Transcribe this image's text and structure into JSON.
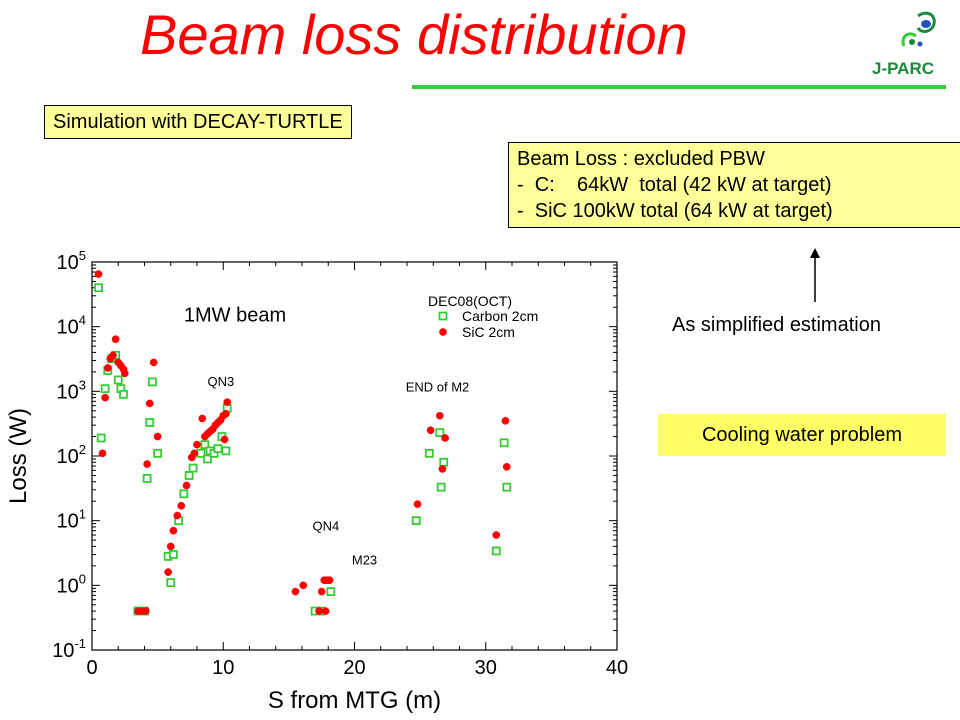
{
  "slide": {
    "title": "Beam loss distribution",
    "sim_note": "Simulation with DECAY-TURTLE",
    "loss_box": {
      "heading": "Beam Loss : excluded PBW",
      "lines": [
        "-  C:    64kW  total (42 kW at target)",
        "-  SiC 100kW total (64 kW at target)"
      ]
    },
    "simplified": "As simplified estimation",
    "cooling": "Cooling water problem",
    "logo_text": "J-PARC"
  },
  "colors": {
    "title": "#ff0000",
    "accent_rule": "#33cc33",
    "note_box": "#ffff99",
    "cooling_box": "#ffff66",
    "carbon": "#33cc33",
    "sic": "#ff0000"
  },
  "chart_data": {
    "type": "scatter",
    "xlabel": "S from MTG (m)",
    "ylabel": "Loss (W)",
    "xlim": [
      0,
      40
    ],
    "ylim_log10": [
      -1,
      5
    ],
    "x_scale": "linear",
    "y_scale": "log",
    "x_ticks": [
      0,
      10,
      20,
      30,
      40
    ],
    "y_ticks": [
      {
        "base": "10",
        "exp": "5",
        "value": 100000
      },
      {
        "base": "10",
        "exp": "4",
        "value": 10000
      },
      {
        "base": "10",
        "exp": "3",
        "value": 1000
      },
      {
        "base": "10",
        "exp": "2",
        "value": 100
      },
      {
        "base": "10",
        "exp": "1",
        "value": 10
      },
      {
        "base": "10",
        "exp": "0",
        "value": 1
      },
      {
        "base": "10",
        "exp": "-1",
        "value": 0.1
      }
    ],
    "grid": false,
    "legend": {
      "title": "DEC08(OCT)",
      "position": "top-right"
    },
    "annotations": [
      {
        "text": "1MW beam",
        "x": 7,
        "y": 12000,
        "size": "large"
      },
      {
        "text": "QN3",
        "x": 8.8,
        "y": 1200,
        "size": "small"
      },
      {
        "text": "QN4",
        "x": 16.8,
        "y": 7,
        "size": "small"
      },
      {
        "text": "M23",
        "x": 19.8,
        "y": 2.1,
        "size": "small"
      },
      {
        "text": "END of M2",
        "x": 23.9,
        "y": 1000,
        "size": "small"
      }
    ],
    "series": [
      {
        "name": "Carbon 2cm",
        "marker": "square-open",
        "color": "#33cc33",
        "points": [
          [
            0.5,
            40000
          ],
          [
            0.7,
            190
          ],
          [
            1.0,
            1100
          ],
          [
            1.2,
            2100
          ],
          [
            1.5,
            3200
          ],
          [
            1.8,
            3600
          ],
          [
            2.0,
            1500
          ],
          [
            2.2,
            1100
          ],
          [
            2.4,
            900
          ],
          [
            3.5,
            0.4
          ],
          [
            4.0,
            0.4
          ],
          [
            4.2,
            45
          ],
          [
            4.4,
            330
          ],
          [
            4.6,
            1400
          ],
          [
            5.0,
            110
          ],
          [
            5.8,
            2.8
          ],
          [
            6.0,
            1.1
          ],
          [
            6.2,
            3.0
          ],
          [
            6.6,
            10
          ],
          [
            7.0,
            26
          ],
          [
            7.4,
            50
          ],
          [
            7.7,
            65
          ],
          [
            8.3,
            110
          ],
          [
            8.6,
            150
          ],
          [
            8.8,
            90
          ],
          [
            9.0,
            120
          ],
          [
            9.3,
            110
          ],
          [
            9.6,
            130
          ],
          [
            9.9,
            200
          ],
          [
            10.2,
            120
          ],
          [
            10.3,
            550
          ],
          [
            17.0,
            0.4
          ],
          [
            17.4,
            0.4
          ],
          [
            18.2,
            0.8
          ],
          [
            24.7,
            10
          ],
          [
            25.7,
            110
          ],
          [
            26.5,
            230
          ],
          [
            26.6,
            33
          ],
          [
            26.8,
            80
          ],
          [
            30.8,
            3.4
          ],
          [
            31.4,
            160
          ],
          [
            31.6,
            33
          ]
        ]
      },
      {
        "name": "SiC 2cm",
        "marker": "circle-filled",
        "color": "#ff0000",
        "points": [
          [
            0.5,
            65000
          ],
          [
            0.8,
            110
          ],
          [
            1.0,
            800
          ],
          [
            1.2,
            2300
          ],
          [
            1.4,
            3200
          ],
          [
            1.6,
            3600
          ],
          [
            1.8,
            6400
          ],
          [
            2.0,
            2800
          ],
          [
            2.2,
            2500
          ],
          [
            2.4,
            2200
          ],
          [
            2.5,
            1900
          ],
          [
            3.5,
            0.4
          ],
          [
            3.8,
            0.4
          ],
          [
            4.1,
            0.4
          ],
          [
            4.2,
            75
          ],
          [
            4.4,
            650
          ],
          [
            4.7,
            2800
          ],
          [
            5.0,
            200
          ],
          [
            5.8,
            1.6
          ],
          [
            6.0,
            4.0
          ],
          [
            6.2,
            7.0
          ],
          [
            6.5,
            12
          ],
          [
            6.8,
            17
          ],
          [
            7.2,
            35
          ],
          [
            7.6,
            95
          ],
          [
            7.8,
            110
          ],
          [
            8.0,
            150
          ],
          [
            8.4,
            380
          ],
          [
            8.6,
            200
          ],
          [
            8.8,
            220
          ],
          [
            9.0,
            240
          ],
          [
            9.2,
            260
          ],
          [
            9.4,
            300
          ],
          [
            9.6,
            330
          ],
          [
            9.8,
            360
          ],
          [
            10.0,
            420
          ],
          [
            10.2,
            450
          ],
          [
            10.3,
            680
          ],
          [
            10.1,
            180
          ],
          [
            15.5,
            0.8
          ],
          [
            16.1,
            1.0
          ],
          [
            17.3,
            0.4
          ],
          [
            17.5,
            0.8
          ],
          [
            17.7,
            1.2
          ],
          [
            17.9,
            1.2
          ],
          [
            18.1,
            1.2
          ],
          [
            17.8,
            0.4
          ],
          [
            24.8,
            18
          ],
          [
            25.8,
            250
          ],
          [
            26.5,
            420
          ],
          [
            26.7,
            63
          ],
          [
            26.9,
            190
          ],
          [
            30.8,
            6.0
          ],
          [
            31.5,
            350
          ],
          [
            31.6,
            68
          ]
        ]
      }
    ]
  }
}
